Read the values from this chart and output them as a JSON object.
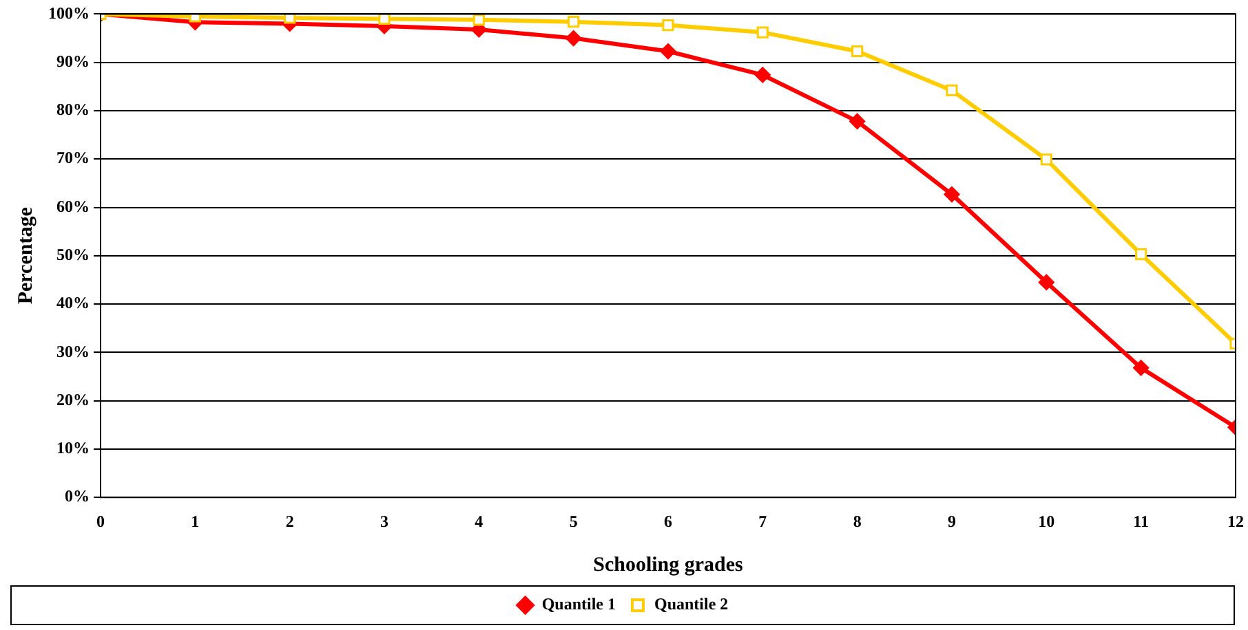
{
  "chart_data": {
    "type": "line",
    "xlabel": "Schooling grades",
    "ylabel": "Percentage",
    "x": [
      0,
      1,
      2,
      3,
      4,
      5,
      6,
      7,
      8,
      9,
      10,
      11,
      12
    ],
    "xlim": [
      0,
      12
    ],
    "xticks": [
      0,
      1,
      2,
      3,
      4,
      5,
      6,
      7,
      8,
      9,
      10,
      11,
      12
    ],
    "series": [
      {
        "name": "Quantile 1",
        "color": "#ff0000",
        "marker": "diamond",
        "values": [
          100,
          98.3,
          98,
          97.5,
          96.8,
          95,
          92.3,
          87.4,
          77.8,
          62.7,
          44.5,
          26.8,
          14.5
        ]
      },
      {
        "name": "Quantile 2",
        "color": "#ffcc00",
        "marker": "square",
        "values": [
          100,
          99.5,
          99.2,
          99,
          98.8,
          98.4,
          97.7,
          96.2,
          92.3,
          84.2,
          69.9,
          50.3,
          31.8
        ]
      }
    ],
    "ylim": [
      0,
      100
    ],
    "yticks": [
      {
        "value": 0,
        "label": "0%"
      },
      {
        "value": 10,
        "label": "10%"
      },
      {
        "value": 20,
        "label": "20%"
      },
      {
        "value": 30,
        "label": "30%"
      },
      {
        "value": 40,
        "label": "40%"
      },
      {
        "value": 50,
        "label": "50%"
      },
      {
        "value": 60,
        "label": "60%"
      },
      {
        "value": 70,
        "label": "70%"
      },
      {
        "value": 80,
        "label": "80%"
      },
      {
        "value": 90,
        "label": "90%"
      },
      {
        "value": 100,
        "label": "100%"
      }
    ],
    "grid": "y",
    "legend": "bottom",
    "line_style": "solid"
  }
}
